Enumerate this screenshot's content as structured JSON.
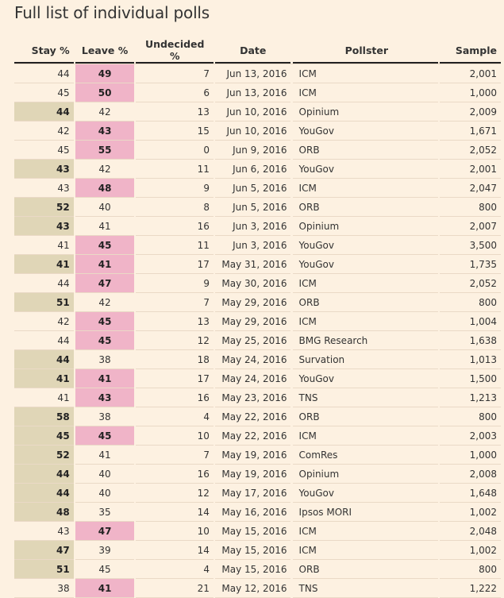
{
  "title": "Full list of individual polls",
  "colors": {
    "background": "#fdf1e1",
    "stay_highlight": "#e0d6b7",
    "leave_highlight": "#f0b4c8"
  },
  "chart_data": {
    "type": "table",
    "columns": [
      "Stay %",
      "Leave %",
      "Undecided %",
      "Date",
      "Pollster",
      "Sample"
    ],
    "rows": [
      {
        "stay": "44",
        "leave": "49",
        "undecided": "7",
        "date": "Jun 13, 2016",
        "pollster": "ICM",
        "sample": "2,001",
        "leader": "leave"
      },
      {
        "stay": "45",
        "leave": "50",
        "undecided": "6",
        "date": "Jun 13, 2016",
        "pollster": "ICM",
        "sample": "1,000",
        "leader": "leave"
      },
      {
        "stay": "44",
        "leave": "42",
        "undecided": "13",
        "date": "Jun 10, 2016",
        "pollster": "Opinium",
        "sample": "2,009",
        "leader": "stay"
      },
      {
        "stay": "42",
        "leave": "43",
        "undecided": "15",
        "date": "Jun 10, 2016",
        "pollster": "YouGov",
        "sample": "1,671",
        "leader": "leave"
      },
      {
        "stay": "45",
        "leave": "55",
        "undecided": "0",
        "date": "Jun 9, 2016",
        "pollster": "ORB",
        "sample": "2,052",
        "leader": "leave"
      },
      {
        "stay": "43",
        "leave": "42",
        "undecided": "11",
        "date": "Jun 6, 2016",
        "pollster": "YouGov",
        "sample": "2,001",
        "leader": "stay"
      },
      {
        "stay": "43",
        "leave": "48",
        "undecided": "9",
        "date": "Jun 5, 2016",
        "pollster": "ICM",
        "sample": "2,047",
        "leader": "leave"
      },
      {
        "stay": "52",
        "leave": "40",
        "undecided": "8",
        "date": "Jun 5, 2016",
        "pollster": "ORB",
        "sample": "800",
        "leader": "stay"
      },
      {
        "stay": "43",
        "leave": "41",
        "undecided": "16",
        "date": "Jun 3, 2016",
        "pollster": "Opinium",
        "sample": "2,007",
        "leader": "stay"
      },
      {
        "stay": "41",
        "leave": "45",
        "undecided": "11",
        "date": "Jun 3, 2016",
        "pollster": "YouGov",
        "sample": "3,500",
        "leader": "leave"
      },
      {
        "stay": "41",
        "leave": "41",
        "undecided": "17",
        "date": "May 31, 2016",
        "pollster": "YouGov",
        "sample": "1,735",
        "leader": "both"
      },
      {
        "stay": "44",
        "leave": "47",
        "undecided": "9",
        "date": "May 30, 2016",
        "pollster": "ICM",
        "sample": "2,052",
        "leader": "leave"
      },
      {
        "stay": "51",
        "leave": "42",
        "undecided": "7",
        "date": "May 29, 2016",
        "pollster": "ORB",
        "sample": "800",
        "leader": "stay"
      },
      {
        "stay": "42",
        "leave": "45",
        "undecided": "13",
        "date": "May 29, 2016",
        "pollster": "ICM",
        "sample": "1,004",
        "leader": "leave"
      },
      {
        "stay": "44",
        "leave": "45",
        "undecided": "12",
        "date": "May 25, 2016",
        "pollster": "BMG Research",
        "sample": "1,638",
        "leader": "leave"
      },
      {
        "stay": "44",
        "leave": "38",
        "undecided": "18",
        "date": "May 24, 2016",
        "pollster": "Survation",
        "sample": "1,013",
        "leader": "stay"
      },
      {
        "stay": "41",
        "leave": "41",
        "undecided": "17",
        "date": "May 24, 2016",
        "pollster": "YouGov",
        "sample": "1,500",
        "leader": "both"
      },
      {
        "stay": "41",
        "leave": "43",
        "undecided": "16",
        "date": "May 23, 2016",
        "pollster": "TNS",
        "sample": "1,213",
        "leader": "leave"
      },
      {
        "stay": "58",
        "leave": "38",
        "undecided": "4",
        "date": "May 22, 2016",
        "pollster": "ORB",
        "sample": "800",
        "leader": "stay"
      },
      {
        "stay": "45",
        "leave": "45",
        "undecided": "10",
        "date": "May 22, 2016",
        "pollster": "ICM",
        "sample": "2,003",
        "leader": "both"
      },
      {
        "stay": "52",
        "leave": "41",
        "undecided": "7",
        "date": "May 19, 2016",
        "pollster": "ComRes",
        "sample": "1,000",
        "leader": "stay"
      },
      {
        "stay": "44",
        "leave": "40",
        "undecided": "16",
        "date": "May 19, 2016",
        "pollster": "Opinium",
        "sample": "2,008",
        "leader": "stay"
      },
      {
        "stay": "44",
        "leave": "40",
        "undecided": "12",
        "date": "May 17, 2016",
        "pollster": "YouGov",
        "sample": "1,648",
        "leader": "stay"
      },
      {
        "stay": "48",
        "leave": "35",
        "undecided": "14",
        "date": "May 16, 2016",
        "pollster": "Ipsos MORI",
        "sample": "1,002",
        "leader": "stay"
      },
      {
        "stay": "43",
        "leave": "47",
        "undecided": "10",
        "date": "May 15, 2016",
        "pollster": "ICM",
        "sample": "2,048",
        "leader": "leave"
      },
      {
        "stay": "47",
        "leave": "39",
        "undecided": "14",
        "date": "May 15, 2016",
        "pollster": "ICM",
        "sample": "1,002",
        "leader": "stay"
      },
      {
        "stay": "51",
        "leave": "45",
        "undecided": "4",
        "date": "May 15, 2016",
        "pollster": "ORB",
        "sample": "800",
        "leader": "stay"
      },
      {
        "stay": "38",
        "leave": "41",
        "undecided": "21",
        "date": "May 12, 2016",
        "pollster": "TNS",
        "sample": "1,222",
        "leader": "leave"
      }
    ]
  }
}
